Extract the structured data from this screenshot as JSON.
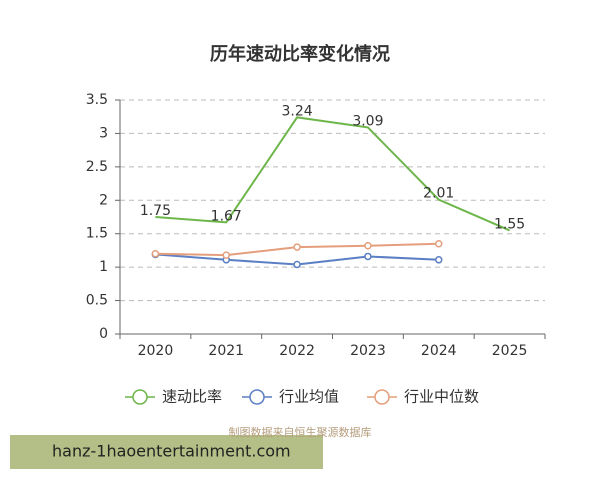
{
  "chart_data": {
    "type": "line",
    "title": "历年速动比率变化情况",
    "categories": [
      "2020",
      "2021",
      "2022",
      "2023",
      "2024",
      "2025"
    ],
    "series": [
      {
        "name": "速动比率",
        "color": "#6db64a",
        "values": [
          1.75,
          1.67,
          3.24,
          3.09,
          2.01,
          1.55
        ],
        "markers": false,
        "show_labels": true
      },
      {
        "name": "行业均值",
        "color": "#5b7fc4",
        "values": [
          1.19,
          1.11,
          1.04,
          1.16,
          1.11,
          null
        ],
        "markers": true,
        "show_labels": false
      },
      {
        "name": "行业中位数",
        "color": "#e59e7c",
        "values": [
          1.2,
          1.18,
          1.3,
          1.32,
          1.35,
          null
        ],
        "markers": true,
        "show_labels": false
      }
    ],
    "ylim": [
      0,
      3.5
    ],
    "yticks": [
      0,
      0.5,
      1,
      1.5,
      2,
      2.5,
      3,
      3.5
    ],
    "grid": true,
    "legend": "bottom",
    "source": "制图数据来自恒生聚源数据库",
    "watermark": "hanz-1haoentertainment.com"
  }
}
